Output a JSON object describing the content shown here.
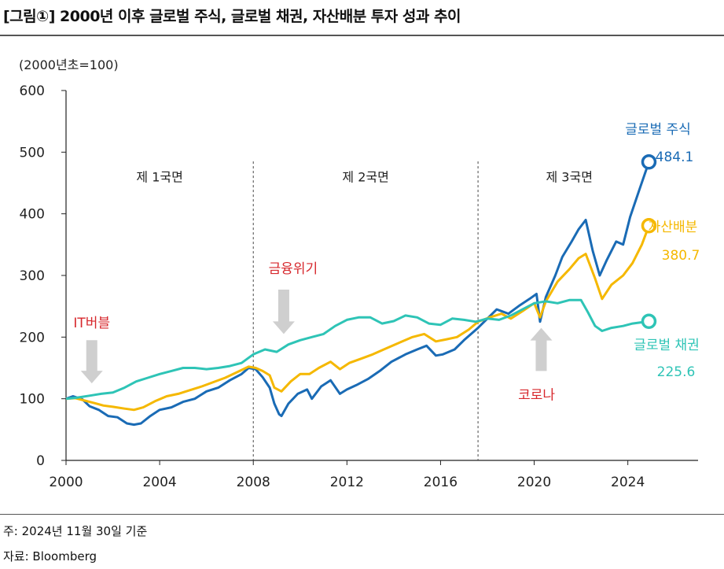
{
  "title": "[그림①] 2000년 이후 글로벌 주식, 글로벌 채권, 자산배분 투자 성과 추이",
  "note": "주: 2024년 11월 30일 기준",
  "source": "자료: Bloomberg",
  "chart_data": {
    "type": "line",
    "title": "",
    "ylabel": "(2000년초=100)",
    "xlabel": "",
    "xlim": [
      2000,
      2027
    ],
    "ylim": [
      0,
      600
    ],
    "yticks": [
      0,
      100,
      200,
      300,
      400,
      500,
      600
    ],
    "xticks": [
      2000,
      2004,
      2008,
      2012,
      2016,
      2020,
      2024
    ],
    "grid": false,
    "phase_dividers": [
      2008.0,
      2017.6
    ],
    "phase_labels": [
      {
        "text": "제 1국면",
        "x": 2004.0,
        "y": 460
      },
      {
        "text": "제 2국면",
        "x": 2012.8,
        "y": 460
      },
      {
        "text": "제 3국면",
        "x": 2021.5,
        "y": 460
      }
    ],
    "annotations": [
      {
        "text": "IT버블",
        "x": 2001.1,
        "y": 225,
        "color": "#d7282d",
        "arrow": "down",
        "arrow_x": 2001.1,
        "arrow_y_from": 195,
        "arrow_y_to": 125
      },
      {
        "text": "금융위기",
        "x": 2009.7,
        "y": 313,
        "color": "#d7282d",
        "arrow": "down",
        "arrow_x": 2009.3,
        "arrow_y_from": 277,
        "arrow_y_to": 205
      },
      {
        "text": "코로나",
        "x": 2020.1,
        "y": 108,
        "color": "#d7282d",
        "arrow": "up",
        "arrow_x": 2020.3,
        "arrow_y_from": 145,
        "arrow_y_to": 215
      }
    ],
    "series": [
      {
        "name": "글로벌 주식",
        "color": "#1a6bb5",
        "end_value": "484.1",
        "values": [
          [
            2000.0,
            100
          ],
          [
            2000.3,
            104
          ],
          [
            2000.7,
            99
          ],
          [
            2001.0,
            88
          ],
          [
            2001.4,
            82
          ],
          [
            2001.8,
            72
          ],
          [
            2002.2,
            70
          ],
          [
            2002.6,
            60
          ],
          [
            2002.9,
            58
          ],
          [
            2003.2,
            60
          ],
          [
            2003.6,
            72
          ],
          [
            2004.0,
            82
          ],
          [
            2004.5,
            86
          ],
          [
            2005.0,
            95
          ],
          [
            2005.5,
            100
          ],
          [
            2006.0,
            112
          ],
          [
            2006.5,
            118
          ],
          [
            2007.0,
            130
          ],
          [
            2007.5,
            140
          ],
          [
            2007.8,
            150
          ],
          [
            2008.1,
            148
          ],
          [
            2008.4,
            135
          ],
          [
            2008.7,
            118
          ],
          [
            2008.9,
            92
          ],
          [
            2009.1,
            75
          ],
          [
            2009.2,
            72
          ],
          [
            2009.5,
            92
          ],
          [
            2009.9,
            108
          ],
          [
            2010.3,
            115
          ],
          [
            2010.5,
            100
          ],
          [
            2010.9,
            120
          ],
          [
            2011.3,
            130
          ],
          [
            2011.7,
            108
          ],
          [
            2012.0,
            115
          ],
          [
            2012.4,
            122
          ],
          [
            2012.9,
            132
          ],
          [
            2013.4,
            145
          ],
          [
            2013.9,
            160
          ],
          [
            2014.5,
            172
          ],
          [
            2015.0,
            180
          ],
          [
            2015.4,
            186
          ],
          [
            2015.8,
            170
          ],
          [
            2016.1,
            172
          ],
          [
            2016.6,
            180
          ],
          [
            2017.0,
            195
          ],
          [
            2017.6,
            215
          ],
          [
            2018.0,
            230
          ],
          [
            2018.4,
            245
          ],
          [
            2018.9,
            238
          ],
          [
            2019.4,
            252
          ],
          [
            2019.8,
            262
          ],
          [
            2020.1,
            270
          ],
          [
            2020.25,
            225
          ],
          [
            2020.5,
            265
          ],
          [
            2020.9,
            300
          ],
          [
            2021.2,
            330
          ],
          [
            2021.6,
            355
          ],
          [
            2021.9,
            375
          ],
          [
            2022.2,
            390
          ],
          [
            2022.5,
            340
          ],
          [
            2022.8,
            300
          ],
          [
            2023.1,
            325
          ],
          [
            2023.5,
            355
          ],
          [
            2023.8,
            350
          ],
          [
            2024.1,
            395
          ],
          [
            2024.5,
            440
          ],
          [
            2024.9,
            484.1
          ]
        ]
      },
      {
        "name": "자산배분",
        "color": "#f5b800",
        "end_value": "380.7",
        "values": [
          [
            2000.0,
            100
          ],
          [
            2000.4,
            101
          ],
          [
            2000.8,
            97
          ],
          [
            2001.2,
            93
          ],
          [
            2001.6,
            89
          ],
          [
            2002.0,
            87
          ],
          [
            2002.5,
            84
          ],
          [
            2002.9,
            82
          ],
          [
            2003.3,
            86
          ],
          [
            2003.8,
            96
          ],
          [
            2004.3,
            104
          ],
          [
            2004.8,
            108
          ],
          [
            2005.3,
            114
          ],
          [
            2005.8,
            120
          ],
          [
            2006.3,
            127
          ],
          [
            2006.8,
            134
          ],
          [
            2007.3,
            143
          ],
          [
            2007.8,
            152
          ],
          [
            2008.1,
            150
          ],
          [
            2008.4,
            145
          ],
          [
            2008.7,
            138
          ],
          [
            2008.9,
            118
          ],
          [
            2009.2,
            112
          ],
          [
            2009.6,
            128
          ],
          [
            2010.0,
            140
          ],
          [
            2010.4,
            140
          ],
          [
            2010.8,
            150
          ],
          [
            2011.3,
            160
          ],
          [
            2011.7,
            148
          ],
          [
            2012.1,
            158
          ],
          [
            2012.6,
            165
          ],
          [
            2013.1,
            172
          ],
          [
            2013.7,
            182
          ],
          [
            2014.3,
            192
          ],
          [
            2014.8,
            200
          ],
          [
            2015.3,
            205
          ],
          [
            2015.8,
            193
          ],
          [
            2016.2,
            196
          ],
          [
            2016.7,
            200
          ],
          [
            2017.2,
            212
          ],
          [
            2017.6,
            225
          ],
          [
            2018.1,
            232
          ],
          [
            2018.6,
            238
          ],
          [
            2019.0,
            230
          ],
          [
            2019.5,
            242
          ],
          [
            2020.0,
            255
          ],
          [
            2020.25,
            232
          ],
          [
            2020.5,
            258
          ],
          [
            2021.0,
            290
          ],
          [
            2021.5,
            310
          ],
          [
            2021.9,
            328
          ],
          [
            2022.2,
            335
          ],
          [
            2022.6,
            295
          ],
          [
            2022.9,
            262
          ],
          [
            2023.3,
            285
          ],
          [
            2023.8,
            300
          ],
          [
            2024.2,
            320
          ],
          [
            2024.6,
            350
          ],
          [
            2024.9,
            380.7
          ]
        ]
      },
      {
        "name": "글로벌 채권",
        "color": "#2ec4b6",
        "end_value": "225.6",
        "values": [
          [
            2000.0,
            100
          ],
          [
            2000.5,
            102
          ],
          [
            2001.0,
            105
          ],
          [
            2001.5,
            108
          ],
          [
            2002.0,
            110
          ],
          [
            2002.5,
            118
          ],
          [
            2003.0,
            128
          ],
          [
            2003.5,
            134
          ],
          [
            2004.0,
            140
          ],
          [
            2004.5,
            145
          ],
          [
            2005.0,
            150
          ],
          [
            2005.5,
            150
          ],
          [
            2006.0,
            148
          ],
          [
            2006.5,
            150
          ],
          [
            2007.0,
            153
          ],
          [
            2007.5,
            158
          ],
          [
            2008.0,
            172
          ],
          [
            2008.5,
            180
          ],
          [
            2009.0,
            176
          ],
          [
            2009.5,
            188
          ],
          [
            2010.0,
            195
          ],
          [
            2010.5,
            200
          ],
          [
            2011.0,
            205
          ],
          [
            2011.5,
            218
          ],
          [
            2012.0,
            228
          ],
          [
            2012.5,
            232
          ],
          [
            2013.0,
            232
          ],
          [
            2013.5,
            222
          ],
          [
            2014.0,
            226
          ],
          [
            2014.5,
            235
          ],
          [
            2015.0,
            232
          ],
          [
            2015.5,
            222
          ],
          [
            2016.0,
            220
          ],
          [
            2016.5,
            230
          ],
          [
            2017.0,
            228
          ],
          [
            2017.5,
            225
          ],
          [
            2018.0,
            230
          ],
          [
            2018.5,
            228
          ],
          [
            2019.0,
            235
          ],
          [
            2019.5,
            245
          ],
          [
            2020.0,
            255
          ],
          [
            2020.5,
            258
          ],
          [
            2021.0,
            255
          ],
          [
            2021.5,
            260
          ],
          [
            2022.0,
            260
          ],
          [
            2022.3,
            240
          ],
          [
            2022.6,
            218
          ],
          [
            2022.9,
            210
          ],
          [
            2023.3,
            215
          ],
          [
            2023.8,
            218
          ],
          [
            2024.2,
            222
          ],
          [
            2024.6,
            224
          ],
          [
            2024.9,
            225.6
          ]
        ]
      }
    ]
  }
}
